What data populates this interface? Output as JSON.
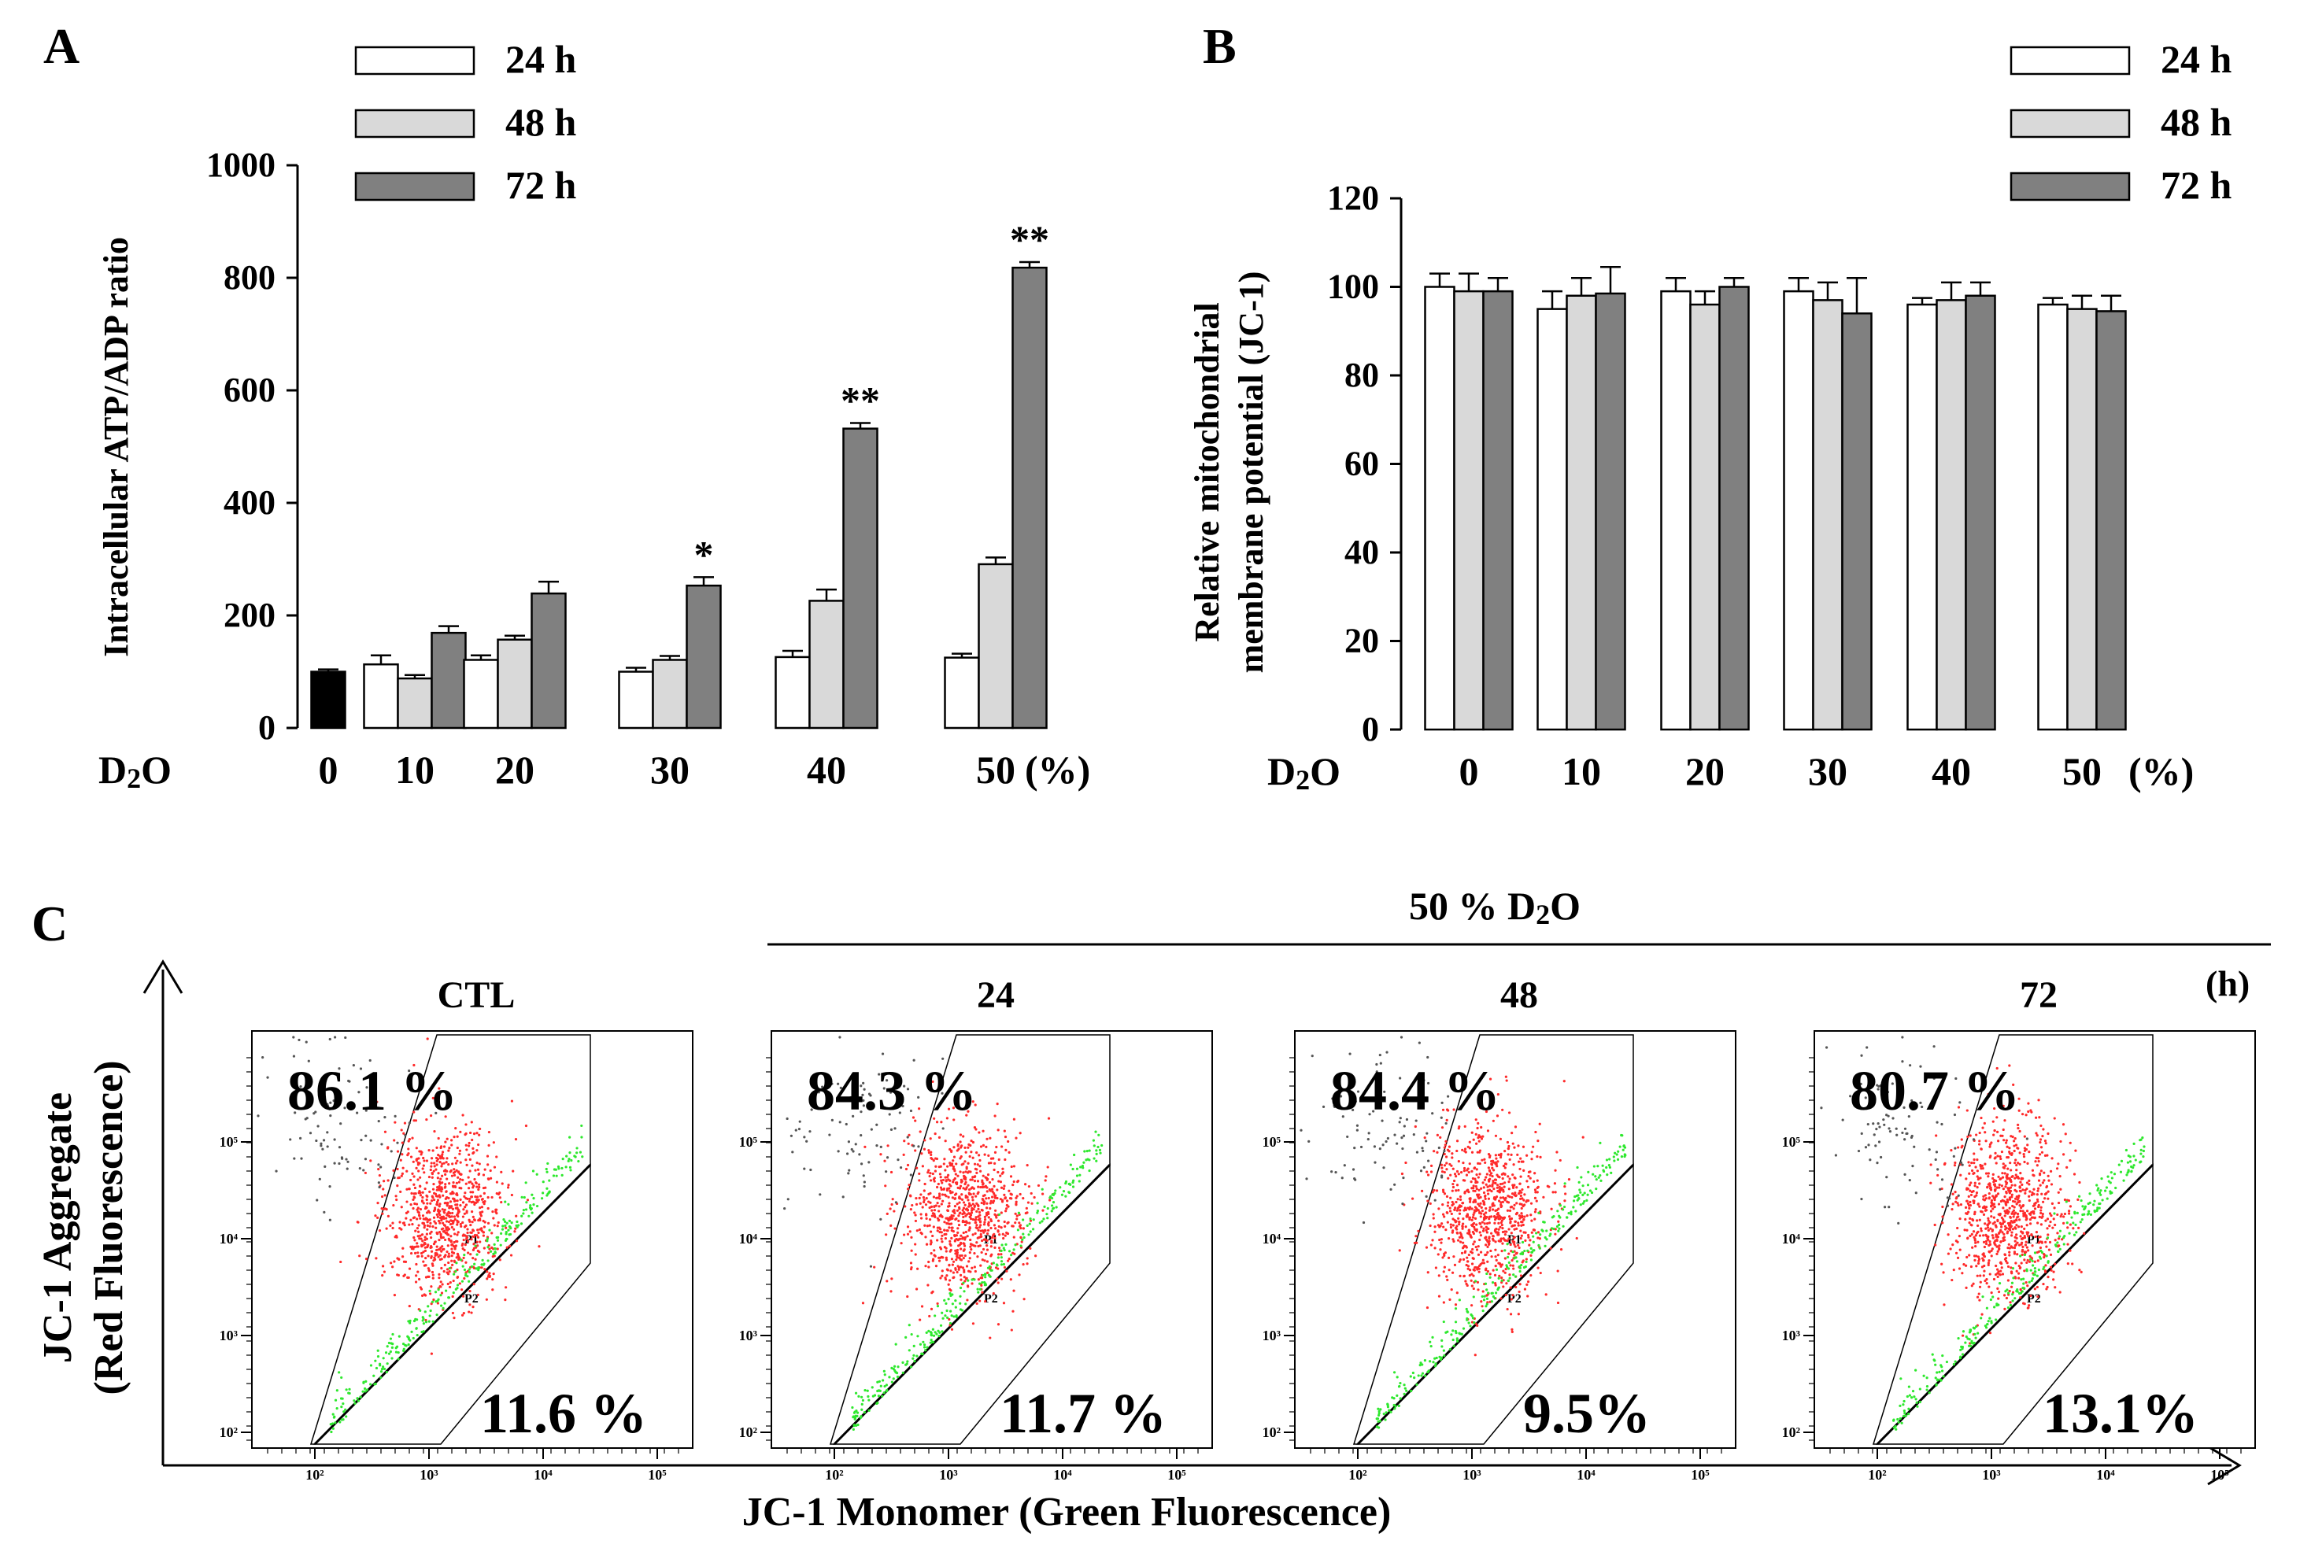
{
  "chart_data": [
    {
      "panel": "A",
      "type": "bar",
      "ylabel": "Intracellular ATP/ADP ratio",
      "ylim": [
        0,
        1000
      ],
      "yticks": [
        0,
        200,
        400,
        600,
        800,
        1000
      ],
      "x_prefix": "D2O",
      "x_unit": "(%)",
      "categories": [
        "0",
        "10",
        "20",
        "30",
        "40",
        "50"
      ],
      "control": {
        "category": "0",
        "value": 100,
        "error": 4,
        "color": "#000000"
      },
      "series": [
        {
          "name": "24 h",
          "color": "#ffffff",
          "values": [
            null,
            113,
            121,
            100,
            126,
            125
          ],
          "errors": [
            null,
            16,
            8,
            7,
            11,
            7
          ]
        },
        {
          "name": "48 h",
          "color": "#d9d9d9",
          "values": [
            null,
            88,
            157,
            121,
            226,
            291
          ],
          "errors": [
            null,
            6,
            7,
            7,
            20,
            12
          ]
        },
        {
          "name": "72 h",
          "color": "#808080",
          "values": [
            null,
            169,
            239,
            253,
            532,
            818
          ],
          "errors": [
            null,
            12,
            21,
            15,
            10,
            10
          ]
        }
      ],
      "annotations": [
        {
          "category": "30",
          "series": "72 h",
          "text": "*"
        },
        {
          "category": "40",
          "series": "72 h",
          "text": "**"
        },
        {
          "category": "50",
          "series": "72 h",
          "text": "**"
        }
      ],
      "legend": [
        "24 h",
        "48 h",
        "72 h"
      ]
    },
    {
      "panel": "B",
      "type": "bar",
      "ylabel_line1": "Relative mitochondrial",
      "ylabel_line2": "membrane potential (JC-1)",
      "ylim": [
        0,
        120
      ],
      "yticks": [
        0,
        20,
        40,
        60,
        80,
        100,
        120
      ],
      "x_prefix": "D2O",
      "x_unit": "(%)",
      "categories": [
        "0",
        "10",
        "20",
        "30",
        "40",
        "50"
      ],
      "series": [
        {
          "name": "24 h",
          "color": "#ffffff",
          "values": [
            100,
            95,
            99,
            99,
            96,
            96
          ],
          "errors": [
            3,
            4,
            3,
            3,
            1.5,
            1.5
          ]
        },
        {
          "name": "48 h",
          "color": "#d9d9d9",
          "values": [
            99,
            98,
            96,
            97,
            97,
            95
          ],
          "errors": [
            4,
            4,
            3,
            4,
            4,
            3
          ]
        },
        {
          "name": "72 h",
          "color": "#808080",
          "values": [
            99,
            98.5,
            100,
            94,
            98,
            94.5
          ],
          "errors": [
            3,
            6,
            2,
            8,
            3,
            3.5
          ]
        }
      ],
      "legend": [
        "24 h",
        "48 h",
        "72 h"
      ]
    },
    {
      "panel": "C",
      "type": "scatter",
      "xlabel": "JC-1 Monomer (Green Fluorescence)",
      "ylabel_line1": "JC-1 Aggregate",
      "ylabel_line2": "(Red Fluorescence)",
      "group_label": "50 %  D2O",
      "time_unit": "(h)",
      "gate_labels": [
        "P1",
        "P2"
      ],
      "plots": [
        {
          "title": "CTL",
          "upper_pct": "86.1 %",
          "lower_pct": "11.6 %"
        },
        {
          "title": "24",
          "upper_pct": "84.3 %",
          "lower_pct": "11.7 %"
        },
        {
          "title": "48",
          "upper_pct": "84.4 %",
          "lower_pct": "9.5%"
        },
        {
          "title": "72",
          "upper_pct": "80.7 %",
          "lower_pct": "13.1%"
        }
      ]
    }
  ],
  "panel_labels": {
    "a": "A",
    "b": "B",
    "c": "C"
  },
  "colors": {
    "red_dots": "#ff2a2a",
    "green_dots": "#2ee82e",
    "gray_dots": "#555555"
  }
}
